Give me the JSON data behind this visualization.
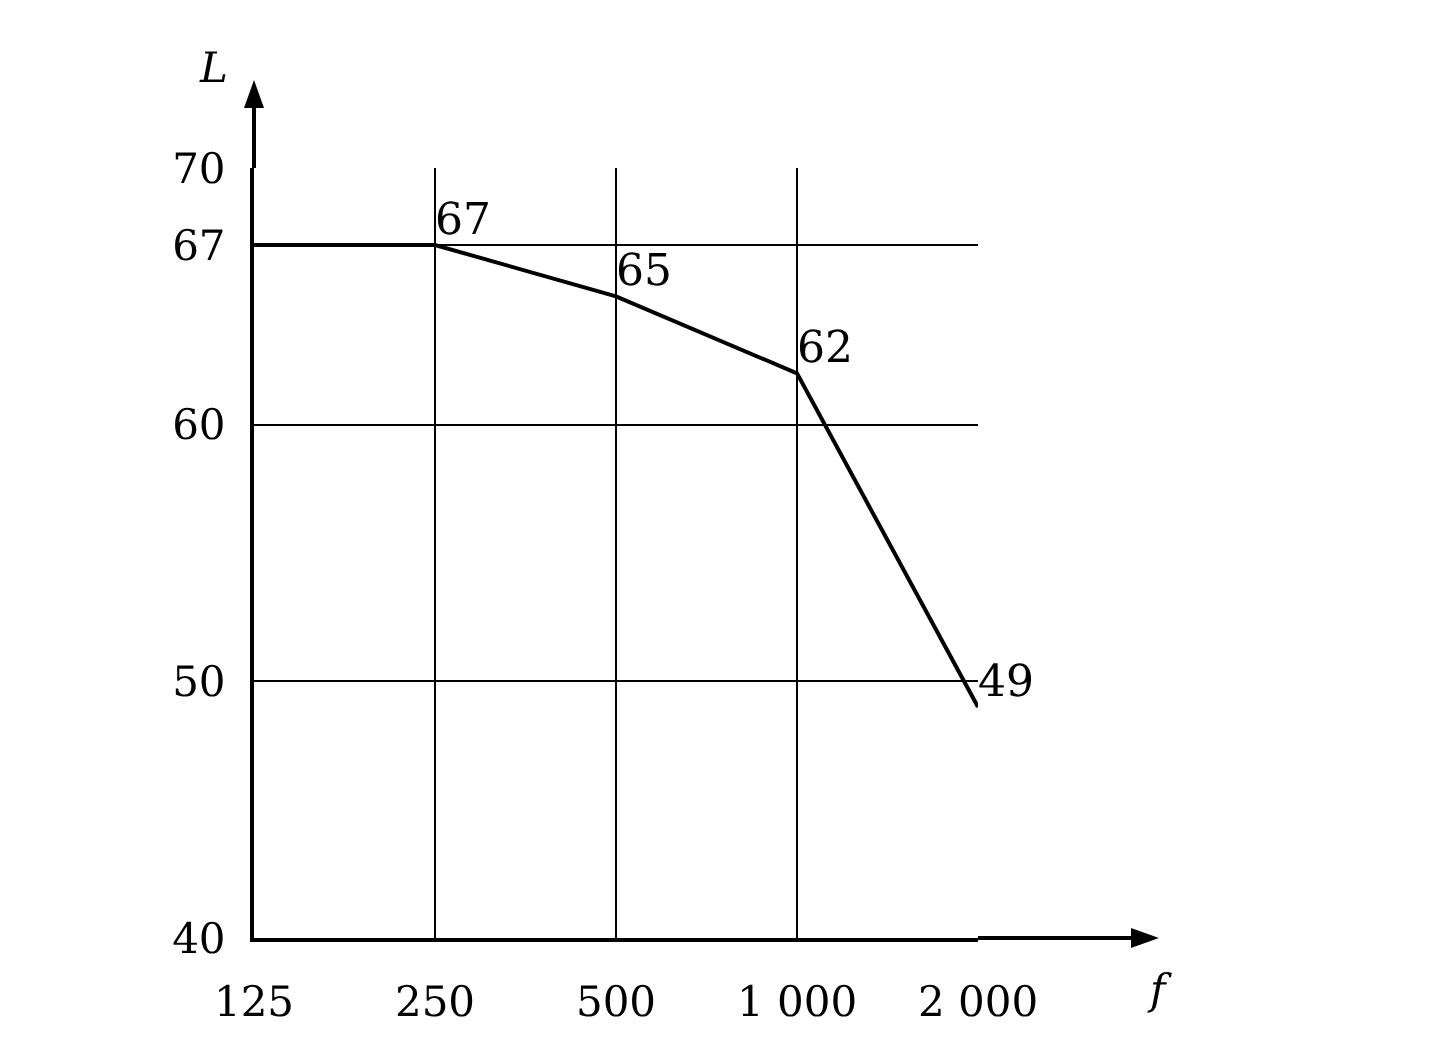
{
  "chart_data": {
    "type": "line",
    "xlabel": "f",
    "ylabel": "L",
    "categories": [
      "125",
      "250",
      "500",
      "1 000",
      "2 000"
    ],
    "series": [
      {
        "color": "#000000",
        "values": [
          67,
          67,
          65,
          62,
          49
        ],
        "value_labels": [
          null,
          "67",
          "65",
          "62",
          "49"
        ]
      }
    ],
    "ylim": [
      40,
      70
    ],
    "yticks": [
      40,
      50,
      60,
      67,
      70
    ],
    "grid": true,
    "marker": "none",
    "line_style": "solid"
  }
}
